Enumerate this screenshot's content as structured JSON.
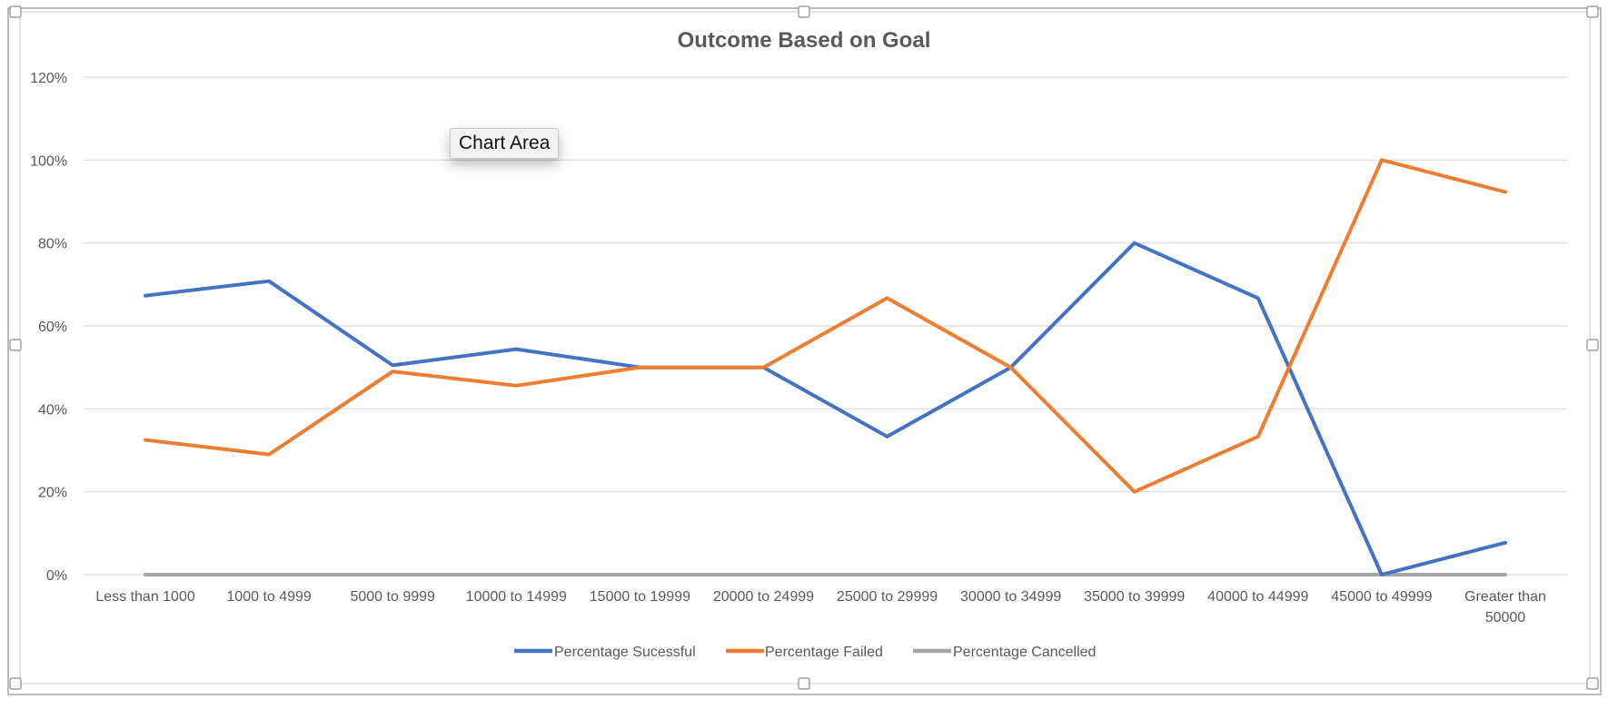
{
  "chart_data": {
    "type": "line",
    "title": "Outcome Based on Goal",
    "xlabel": "",
    "ylabel": "",
    "categories": [
      "Less than 1000",
      "1000 to 4999",
      "5000 to 9999",
      "10000 to 14999",
      "15000 to 19999",
      "20000 to 24999",
      "25000 to 29999",
      "30000 to 34999",
      "35000 to 39999",
      "40000 to 44999",
      "45000 to 49999",
      "Greater than 50000"
    ],
    "category_lines": [
      [
        "Less than 1000"
      ],
      [
        "1000 to 4999"
      ],
      [
        "5000 to 9999"
      ],
      [
        "10000 to 14999"
      ],
      [
        "15000 to 19999"
      ],
      [
        "20000 to 24999"
      ],
      [
        "25000 to 29999"
      ],
      [
        "30000 to 34999"
      ],
      [
        "35000 to 39999"
      ],
      [
        "40000 to 44999"
      ],
      [
        "45000 to 49999"
      ],
      [
        "Greater than",
        "50000"
      ]
    ],
    "ylim": [
      0,
      1.2
    ],
    "yticks": [
      0,
      0.2,
      0.4,
      0.6,
      0.8,
      1.0,
      1.2
    ],
    "ytick_labels": [
      "0%",
      "20%",
      "40%",
      "60%",
      "80%",
      "100%",
      "120%"
    ],
    "grid": true,
    "legend_position": "bottom",
    "series": [
      {
        "name": "Percentage Sucessful",
        "color": "#4472c4",
        "values": [
          0.673,
          0.708,
          0.505,
          0.544,
          0.5,
          0.5,
          0.333,
          0.5,
          0.8,
          0.667,
          0.0,
          0.077
        ]
      },
      {
        "name": "Percentage Failed",
        "color": "#ed7d31",
        "values": [
          0.325,
          0.29,
          0.49,
          0.456,
          0.5,
          0.5,
          0.667,
          0.5,
          0.2,
          0.333,
          1.0,
          0.923
        ]
      },
      {
        "name": "Percentage Cancelled",
        "color": "#a5a5a5",
        "values": [
          0,
          0,
          0,
          0,
          0,
          0,
          0,
          0,
          0,
          0,
          0,
          0
        ]
      }
    ]
  },
  "tooltip": {
    "label": "Chart Area"
  }
}
